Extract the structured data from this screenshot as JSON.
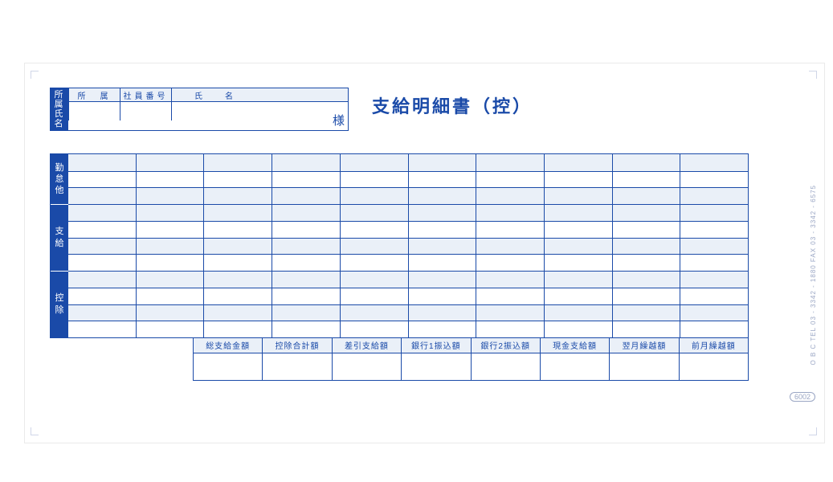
{
  "colors": {
    "primary": "#1a4aa8",
    "shade": "#eaf0f8",
    "bg": "#ffffff",
    "faint": "#9aa6c4"
  },
  "form": {
    "title": "支給明細書（控）",
    "number": "6002",
    "side_text": "O B C   TEL 03 - 3342 - 1880   FAX 03 - 3342 - 6575",
    "sama": "様"
  },
  "id_block": {
    "label": "所属氏名",
    "headers": {
      "dept": "所　属",
      "empno": "社員番号",
      "name": "氏名"
    },
    "values": {
      "dept": "",
      "empno": "",
      "name": ""
    }
  },
  "sections": [
    {
      "label": "勤怠他",
      "rows": 3
    },
    {
      "label": "支給",
      "rows": 4
    },
    {
      "label": "控除",
      "rows": 4
    }
  ],
  "grid": {
    "cols": 10,
    "shaded_row_pattern": "first_of_pair"
  },
  "summary": {
    "headers": [
      "総支給金額",
      "控除合計額",
      "差引支給額",
      "銀行1振込額",
      "銀行2振込額",
      "現金支給額",
      "翌月繰越額",
      "前月繰越額"
    ],
    "values": [
      "",
      "",
      "",
      "",
      "",
      "",
      "",
      ""
    ]
  }
}
